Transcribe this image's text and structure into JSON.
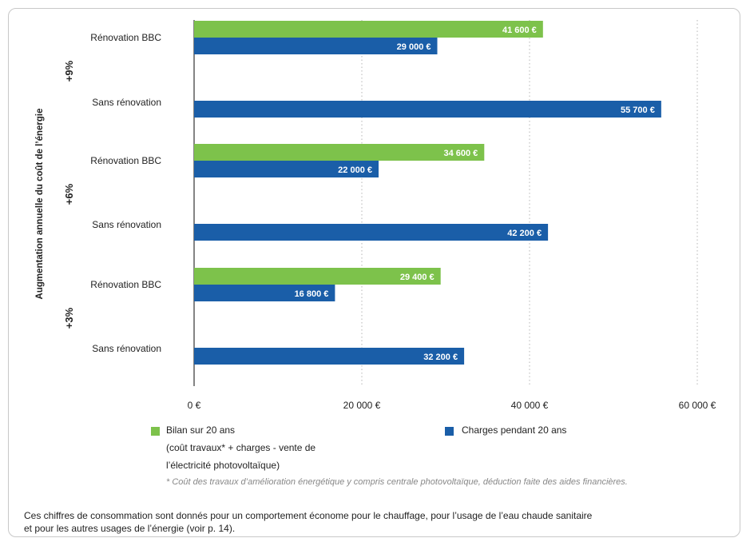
{
  "chart_data": {
    "type": "bar",
    "orientation": "horizontal",
    "y_axis_title": "Augmentation annuelle du coût de l’énergie",
    "groups": [
      {
        "label": "+9%",
        "rows": [
          {
            "label": "Rénovation BBC",
            "bars": [
              {
                "series": "bilan",
                "value": 41600,
                "label": "41 600 €"
              },
              {
                "series": "charges",
                "value": 29000,
                "label": "29 000 €"
              }
            ]
          },
          {
            "label": "Sans rénovation",
            "bars": [
              {
                "series": "charges",
                "value": 55700,
                "label": "55 700 €"
              }
            ]
          }
        ]
      },
      {
        "label": "+6%",
        "rows": [
          {
            "label": "Rénovation BBC",
            "bars": [
              {
                "series": "bilan",
                "value": 34600,
                "label": "34 600 €"
              },
              {
                "series": "charges",
                "value": 22000,
                "label": "22 000 €"
              }
            ]
          },
          {
            "label": "Sans rénovation",
            "bars": [
              {
                "series": "charges",
                "value": 42200,
                "label": "42 200 €"
              }
            ]
          }
        ]
      },
      {
        "label": "+3%",
        "rows": [
          {
            "label": "Rénovation BBC",
            "bars": [
              {
                "series": "bilan",
                "value": 29400,
                "label": "29 400 €"
              },
              {
                "series": "charges",
                "value": 16800,
                "label": "16 800 €"
              }
            ]
          },
          {
            "label": "Sans rénovation",
            "bars": [
              {
                "series": "charges",
                "value": 32200,
                "label": "32 200 €"
              }
            ]
          }
        ]
      }
    ],
    "x_ticks": [
      {
        "value": 0,
        "label": "0 €"
      },
      {
        "value": 20000,
        "label": "20 000 €"
      },
      {
        "value": 40000,
        "label": "40 000 €"
      },
      {
        "value": 60000,
        "label": "60 000 €"
      }
    ],
    "xlim": [
      0,
      60000
    ],
    "grid": "vertical dotted",
    "colors": {
      "bilan": "#7dc24b",
      "charges": "#1a5ea8"
    }
  },
  "legend": {
    "bilan": {
      "line1": "Bilan sur 20 ans",
      "line2": "(coût travaux* + charges - vente de",
      "line3": "l’électricité photovoltaïque)"
    },
    "charges": {
      "line1": "Charges pendant 20 ans"
    }
  },
  "footnote": "* Coût des travaux d’amélioration énergétique y compris centrale photovoltaïque, déduction faite des aides financières.",
  "note": {
    "line1": "Ces chiffres de consommation sont donnés pour un comportement économe pour le chauffage, pour l’usage de l’eau chaude sanitaire",
    "line2": "et pour les autres usages de l’énergie (voir p. 14)."
  }
}
